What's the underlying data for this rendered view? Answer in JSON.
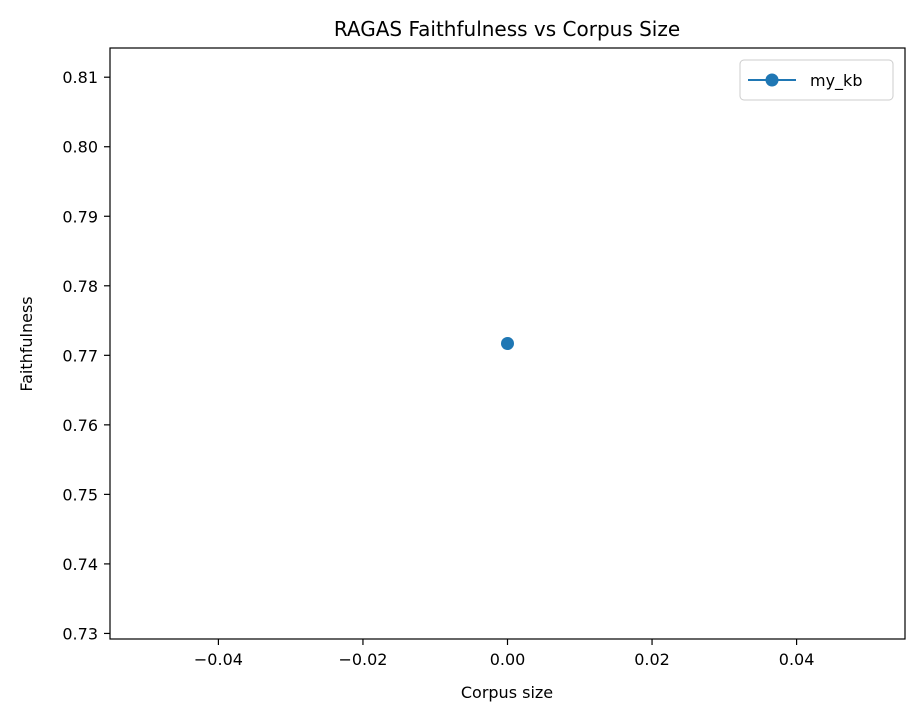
{
  "chart_data": {
    "type": "line",
    "title": "RAGAS Faithfulness vs Corpus Size",
    "xlabel": "Corpus size",
    "ylabel": "Faithfulness",
    "xlim": [
      -0.055,
      0.055
    ],
    "ylim": [
      0.7292,
      0.8142
    ],
    "xticks": [
      -0.04,
      -0.02,
      0.0,
      0.02,
      0.04
    ],
    "xtick_labels": [
      "−0.04",
      "−0.02",
      "0.00",
      "0.02",
      "0.04"
    ],
    "yticks": [
      0.73,
      0.74,
      0.75,
      0.76,
      0.77,
      0.78,
      0.79,
      0.8,
      0.81
    ],
    "ytick_labels": [
      "0.73",
      "0.74",
      "0.75",
      "0.76",
      "0.77",
      "0.78",
      "0.79",
      "0.80",
      "0.81"
    ],
    "grid": false,
    "legend_position": "top-right",
    "series": [
      {
        "name": "my_kb",
        "color": "#1f77b4",
        "marker": "circle",
        "x": [
          0.0
        ],
        "y": [
          0.7717
        ]
      }
    ]
  }
}
